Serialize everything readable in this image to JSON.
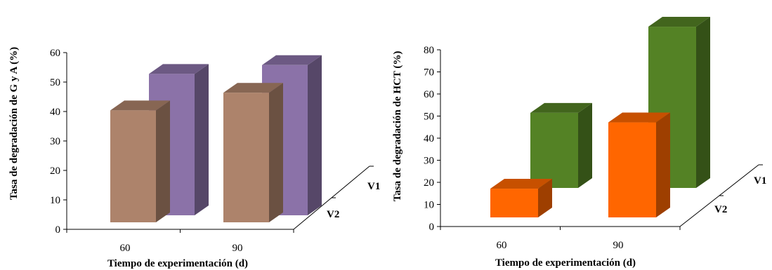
{
  "chart_data": [
    {
      "type": "bar",
      "projection": "3d",
      "xlabel": "Tiempo de experimentación (d)",
      "ylabel": "Tasa de degradación de G y A (%)",
      "categories": [
        "60",
        "90"
      ],
      "ylim": [
        0,
        60
      ],
      "yticks": [
        "0",
        "10",
        "20",
        "30",
        "40",
        "50",
        "60"
      ],
      "series": [
        {
          "name": "V1",
          "values": [
            48,
            51
          ],
          "color": "#8b72a8"
        },
        {
          "name": "V2",
          "values": [
            38,
            44
          ],
          "color": "#ad836b"
        }
      ]
    },
    {
      "type": "bar",
      "projection": "3d",
      "xlabel": "Tiempo de experimentación (d)",
      "ylabel": "Tasa de degradación de HCT (%)",
      "categories": [
        "60",
        "90"
      ],
      "ylim": [
        0,
        80
      ],
      "yticks": [
        "0",
        "10",
        "20",
        "30",
        "40",
        "50",
        "60",
        "70",
        "80"
      ],
      "series": [
        {
          "name": "V1",
          "values": [
            34,
            73
          ],
          "color": "#548225"
        },
        {
          "name": "V2",
          "values": [
            13,
            43
          ],
          "color": "#ff6600"
        }
      ]
    }
  ]
}
